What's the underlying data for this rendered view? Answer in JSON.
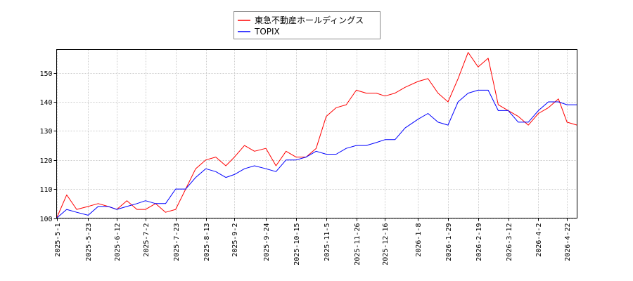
{
  "chart_data": {
    "type": "line",
    "title": "",
    "xlabel": "",
    "ylabel": "",
    "ylim": [
      100,
      158
    ],
    "grid": true,
    "legend_placement": "top-center",
    "x_ticks": [
      "2025-5-1",
      "2025-5-23",
      "2025-6-12",
      "2025-7-2",
      "2025-7-23",
      "2025-8-13",
      "2025-9-2",
      "2025-9-24",
      "2025-10-15",
      "2025-11-5",
      "2025-11-26",
      "2025-12-16",
      "2026-1-8",
      "2026-1-29",
      "2026-2-19",
      "2026-3-12",
      "2026-4-2",
      "2026-4-22"
    ],
    "y_ticks": [
      100,
      110,
      120,
      130,
      140,
      150
    ],
    "x": [
      "2025-5-1",
      "2025-5-8",
      "2025-5-15",
      "2025-5-23",
      "2025-5-30",
      "2025-6-6",
      "2025-6-12",
      "2025-6-19",
      "2025-6-26",
      "2025-7-2",
      "2025-7-9",
      "2025-7-16",
      "2025-7-23",
      "2025-7-30",
      "2025-8-6",
      "2025-8-13",
      "2025-8-20",
      "2025-8-27",
      "2025-9-2",
      "2025-9-9",
      "2025-9-16",
      "2025-9-24",
      "2025-10-1",
      "2025-10-8",
      "2025-10-15",
      "2025-10-22",
      "2025-10-29",
      "2025-11-5",
      "2025-11-12",
      "2025-11-19",
      "2025-11-26",
      "2025-12-3",
      "2025-12-10",
      "2025-12-16",
      "2025-12-23",
      "2025-12-30",
      "2026-1-8",
      "2026-1-15",
      "2026-1-22",
      "2026-1-29",
      "2026-2-5",
      "2026-2-12",
      "2026-2-19",
      "2026-2-26",
      "2026-3-5",
      "2026-3-12",
      "2026-3-19",
      "2026-3-26",
      "2026-4-2",
      "2026-4-9",
      "2026-4-16",
      "2026-4-22",
      "2026-4-29"
    ],
    "series": [
      {
        "name": "東急不動産ホールディングス",
        "color": "#ff0000",
        "values": [
          100,
          108,
          103,
          104,
          105,
          104,
          103,
          106,
          103,
          103,
          105,
          102,
          103,
          110,
          117,
          120,
          121,
          118,
          121,
          125,
          123,
          124,
          118,
          123,
          121,
          121,
          124,
          135,
          138,
          139,
          144,
          143,
          143,
          142,
          143,
          145,
          147,
          148,
          143,
          140,
          148,
          157,
          152,
          155,
          139,
          137,
          135,
          132,
          136,
          138,
          141,
          133,
          132
        ]
      },
      {
        "name": "TOPIX",
        "color": "#0000ff",
        "values": [
          100,
          103,
          102,
          101,
          104,
          104,
          103,
          104,
          105,
          106,
          105,
          105,
          110,
          110,
          114,
          117,
          116,
          114,
          115,
          117,
          118,
          117,
          116,
          120,
          120,
          121,
          123,
          122,
          122,
          124,
          125,
          125,
          126,
          127,
          127,
          131,
          134,
          136,
          133,
          132,
          140,
          143,
          144,
          144,
          137,
          137,
          133,
          133,
          137,
          140,
          140,
          139,
          139
        ]
      }
    ]
  }
}
